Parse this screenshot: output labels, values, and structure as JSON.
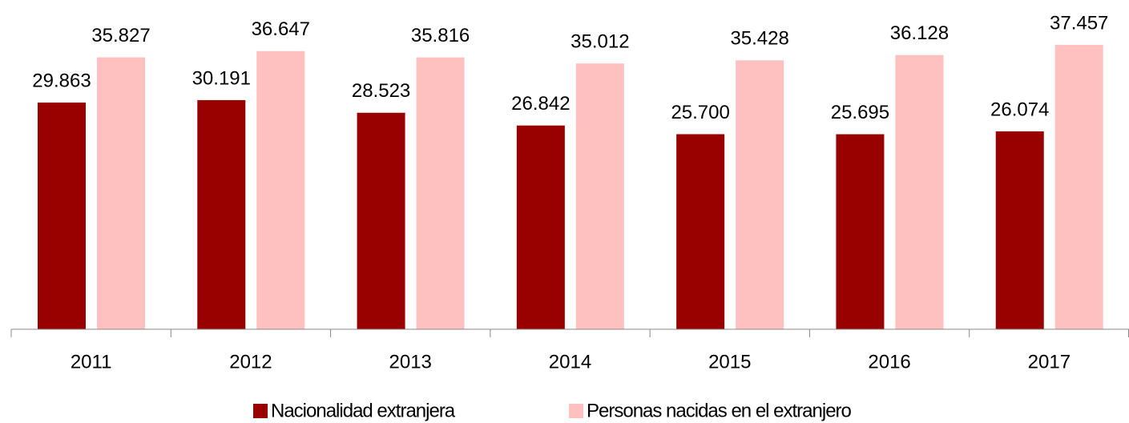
{
  "chart_data": {
    "type": "bar",
    "categories": [
      "2011",
      "2012",
      "2013",
      "2014",
      "2015",
      "2016",
      "2017"
    ],
    "series": [
      {
        "name": "Nacionalidad extranjera",
        "color": "#990000",
        "values": [
          29863,
          30191,
          28523,
          26842,
          25700,
          25695,
          26074
        ],
        "value_labels": [
          "29.863",
          "30.191",
          "28.523",
          "26.842",
          "25.700",
          "25.695",
          "26.074"
        ]
      },
      {
        "name": "Personas nacidas en el extranjero",
        "color": "#ffc0c0",
        "values": [
          35827,
          36647,
          35816,
          35012,
          35428,
          36128,
          37457
        ],
        "value_labels": [
          "35.827",
          "36.647",
          "35.816",
          "35.012",
          "35.428",
          "36.128",
          "37.457"
        ]
      }
    ],
    "ylim": [
      0,
      40000
    ],
    "legend": "bottom"
  }
}
